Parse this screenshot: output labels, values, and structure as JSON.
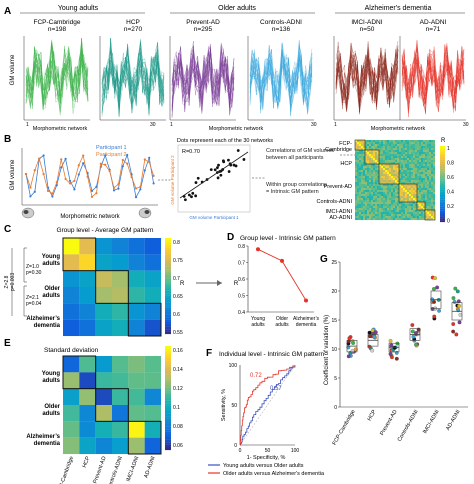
{
  "panels": {
    "A": "A",
    "B": "B",
    "C": "C",
    "D": "D",
    "E": "E",
    "F": "F",
    "G": "G"
  },
  "groups": {
    "young": "Young adults",
    "older": "Older adults",
    "ad": "Alzheimer's dementia"
  },
  "cohorts": [
    {
      "name": "FCP-Cambridge",
      "n": "n=198",
      "color": "#3db24b"
    },
    {
      "name": "HCP",
      "n": "n=270",
      "color": "#1f9a8a"
    },
    {
      "name": "Prevent-AD",
      "n": "n=295",
      "color": "#7b3f98"
    },
    {
      "name": "Controls-ADNI",
      "n": "n=136",
      "color": "#3aa6dd"
    },
    {
      "name": "lMCI-ADNI",
      "n": "n=50",
      "color": "#8e2a1f"
    },
    {
      "name": "AD-ADNI",
      "n": "n=71",
      "color": "#e53228"
    }
  ],
  "panelA": {
    "ylabel": "GM volume",
    "xlabel": "Morphometric network",
    "tick_start": "1",
    "tick_end": "30"
  },
  "panelB": {
    "ylabel": "GM volume",
    "xlabel": "Morphometric network",
    "participant1": "Participant 1",
    "participant2": "Participant 2",
    "dots_note": "Dots represent each of the 30 networks",
    "r_value": "R=0.70",
    "scatter_ylabel": "GM volume Participant 2",
    "scatter_xlabel": "GM volume Participant 1",
    "note1": "Correlations of GM volumes between all participants",
    "note2": "Within group correlations = Intrinsic GM pattern",
    "matrix_labels": [
      "FCP-Cambridge",
      "HCP",
      "Prevent-AD",
      "Controls-ADNI",
      "lMCI-ADNI",
      "AD-ADNI"
    ],
    "colorbar_label": "R",
    "colorbar_ticks": [
      "1",
      "0.8",
      "0.6",
      "0.4",
      "0.2",
      "0"
    ]
  },
  "panelC": {
    "title": "Group level - Average GM pattern",
    "rows": [
      "Young adults",
      "Older adults",
      "Alzheimer's dementia"
    ],
    "z1": "Z=1.0",
    "p1": "p=0.30",
    "z2": "Z=2.1",
    "p2": "p=0.04",
    "z3": "Z=2.8",
    "p3": "p=0.003",
    "colorbar_label": "R",
    "colorbar_ticks": [
      "0.8",
      "0.75",
      "0.7",
      "0.65",
      "0.6",
      "0.55"
    ]
  },
  "panelD": {
    "title": "Group level - Intrinsic GM pattern",
    "ylabel": "R",
    "yticks": [
      "0.8",
      "0.7",
      "0.6",
      "0.5",
      "0.4"
    ],
    "categories": [
      "Young adults",
      "Older adults",
      "Alzheimer's dementia"
    ]
  },
  "panelE": {
    "title": "Standard deviation",
    "rows": [
      "Young adults",
      "Older adults",
      "Alzheimer's dementia"
    ],
    "cols": [
      "FCP-Cambridge",
      "HCP",
      "Prevent-AD",
      "Controls-ADNI",
      "lMCI-ADNI",
      "AD-ADNI"
    ],
    "colorbar_ticks": [
      "0.16",
      "0.14",
      "0.12",
      "0.1",
      "0.08",
      "0.06"
    ]
  },
  "panelF": {
    "title": "Individual level - Intrinsic GM pattern",
    "ylabel": "Sensitivity, %",
    "xlabel": "1- Specificity, %",
    "ticks": [
      "0",
      "50",
      "100"
    ],
    "auc_red": "0.72",
    "auc_blue": "0.57",
    "legend_blue": "Young adults versus Older adults",
    "legend_red": "Older adults versus Alzheimer's dementia"
  },
  "panelG": {
    "ylabel": "Coefficient of variation (%)",
    "yticks": [
      "25",
      "20",
      "15",
      "10",
      "5",
      "0"
    ],
    "categories": [
      "FCP-Cambridge",
      "HCP",
      "Prevent-AD",
      "Controls-ADNI",
      "lMCI-ADNI",
      "AD-ADNI"
    ]
  },
  "chart_data": [
    {
      "type": "line",
      "title": "Group level - Intrinsic GM pattern",
      "categories": [
        "Young adults",
        "Older adults",
        "Alzheimer's dementia"
      ],
      "values": [
        0.78,
        0.71,
        0.47
      ],
      "ylabel": "R",
      "ylim": [
        0.4,
        0.8
      ]
    },
    {
      "type": "line",
      "title": "Individual level - Intrinsic GM pattern",
      "xlabel": "1- Specificity, %",
      "ylabel": "Sensitivity, %",
      "series": [
        {
          "name": "Young adults versus Older adults",
          "auc": 0.57,
          "x": [
            0,
            5,
            15,
            25,
            40,
            55,
            70,
            85,
            100
          ],
          "y": [
            0,
            10,
            25,
            38,
            52,
            65,
            78,
            90,
            100
          ]
        },
        {
          "name": "Older adults versus Alzheimer's dementia",
          "auc": 0.72,
          "x": [
            0,
            3,
            8,
            15,
            25,
            40,
            60,
            80,
            100
          ],
          "y": [
            0,
            25,
            45,
            58,
            70,
            80,
            88,
            95,
            100
          ]
        }
      ]
    },
    {
      "type": "scatter",
      "title": "",
      "ylabel": "Coefficient of variation (%)",
      "ylim": [
        0,
        25
      ],
      "categories": [
        "FCP-Cambridge",
        "HCP",
        "Prevent-AD",
        "Controls-ADNI",
        "lMCI-ADNI",
        "AD-ADNI"
      ],
      "medians": [
        10.5,
        11.5,
        10.3,
        12.5,
        18.5,
        16.5
      ],
      "q1": [
        9.5,
        10.5,
        9.5,
        11.5,
        17.0,
        15.0
      ],
      "q3": [
        11.5,
        12.5,
        11.0,
        13.5,
        20.0,
        18.0
      ]
    }
  ]
}
